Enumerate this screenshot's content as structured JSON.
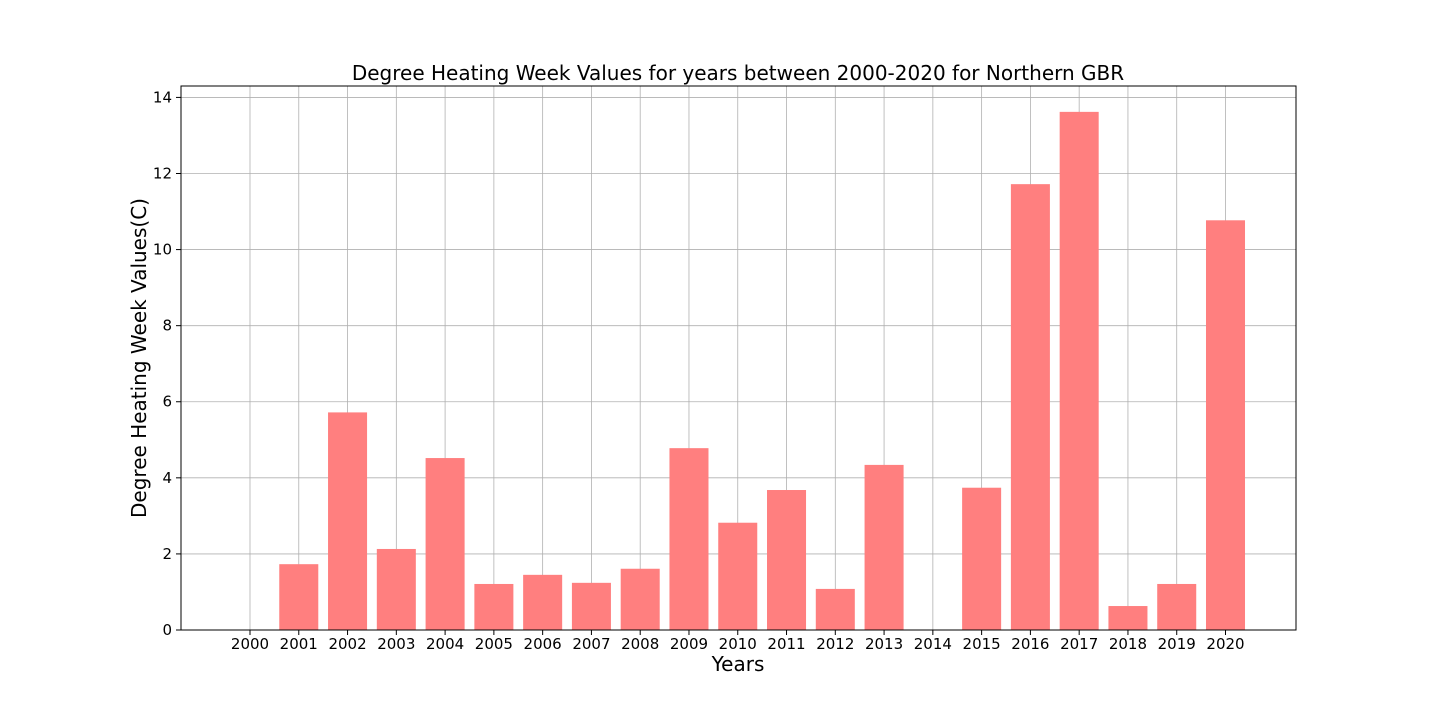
{
  "chart_data": {
    "type": "bar",
    "title": "Degree Heating Week Values for years between 2000-2020 for Northern GBR",
    "xlabel": "Years",
    "ylabel": "Degree Heating Week Values(C)",
    "categories": [
      "2000",
      "2001",
      "2002",
      "2003",
      "2004",
      "2005",
      "2006",
      "2007",
      "2008",
      "2009",
      "2010",
      "2011",
      "2012",
      "2013",
      "2014",
      "2015",
      "2016",
      "2017",
      "2018",
      "2019",
      "2020"
    ],
    "values": [
      0,
      1.73,
      5.72,
      2.13,
      4.52,
      1.21,
      1.45,
      1.24,
      1.61,
      4.78,
      2.82,
      3.68,
      1.08,
      4.34,
      0,
      3.74,
      11.72,
      13.62,
      0.63,
      1.21,
      10.77
    ],
    "yticks": [
      "0",
      "2",
      "4",
      "6",
      "8",
      "10",
      "12",
      "14"
    ],
    "ylim": [
      0,
      14.3
    ],
    "grid": true,
    "bar_color": "#ff7f7f"
  }
}
